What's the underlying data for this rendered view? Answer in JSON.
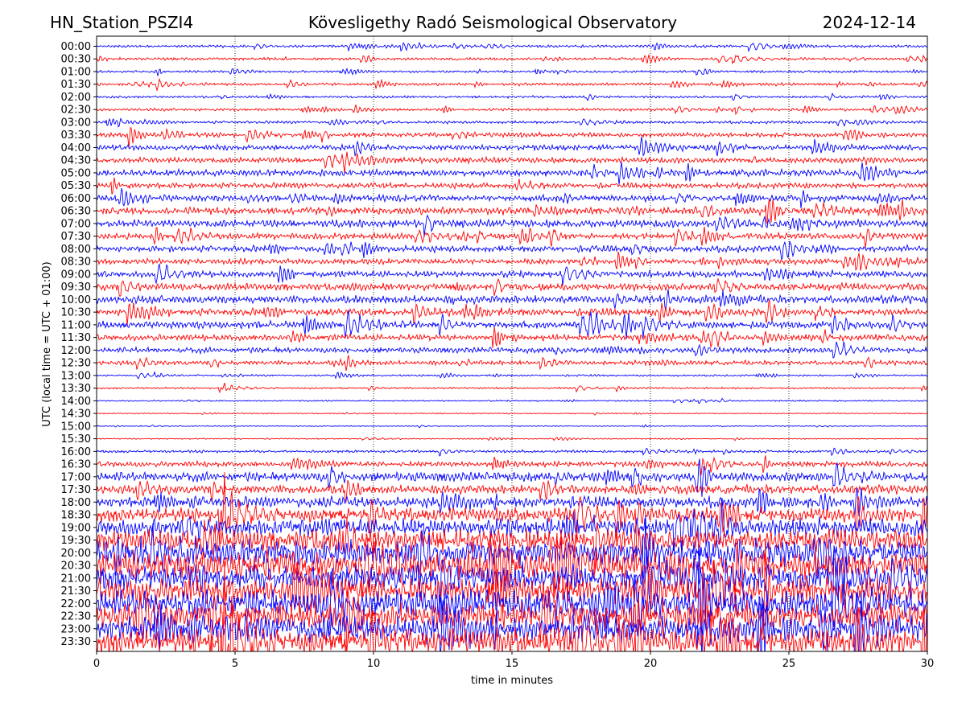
{
  "header": {
    "station": "HN_Station_PSZI4",
    "observatory": "Kövesligethy Radó Seismological Observatory",
    "date": "2024-12-14"
  },
  "chart_data": {
    "type": "line",
    "title": "Kövesligethy Radó Seismological Observatory",
    "xlabel": "time in minutes",
    "ylabel": "UTC (local time = UTC + 01:00)",
    "xlim": [
      0,
      30
    ],
    "xticks": [
      "0",
      "5",
      "10",
      "15",
      "20",
      "25",
      "30"
    ],
    "grid": "vertical dotted at 5-minute intervals",
    "colors": [
      "#0000ff",
      "#ff0000"
    ],
    "rows": [
      {
        "label": "00:00",
        "amp": 1.5
      },
      {
        "label": "00:30",
        "amp": 1.5
      },
      {
        "label": "01:00",
        "amp": 1.3
      },
      {
        "label": "01:30",
        "amp": 1.5
      },
      {
        "label": "02:00",
        "amp": 1.3
      },
      {
        "label": "02:30",
        "amp": 1.5
      },
      {
        "label": "03:00",
        "amp": 1.5
      },
      {
        "label": "03:30",
        "amp": 2.5
      },
      {
        "label": "04:00",
        "amp": 3
      },
      {
        "label": "04:30",
        "amp": 3
      },
      {
        "label": "05:00",
        "amp": 3.5
      },
      {
        "label": "05:30",
        "amp": 3
      },
      {
        "label": "06:00",
        "amp": 3.5
      },
      {
        "label": "06:30",
        "amp": 4
      },
      {
        "label": "07:00",
        "amp": 4
      },
      {
        "label": "07:30",
        "amp": 3.5
      },
      {
        "label": "08:00",
        "amp": 3.5
      },
      {
        "label": "08:30",
        "amp": 3
      },
      {
        "label": "09:00",
        "amp": 3.5
      },
      {
        "label": "09:30",
        "amp": 4
      },
      {
        "label": "10:00",
        "amp": 4.5
      },
      {
        "label": "10:30",
        "amp": 4
      },
      {
        "label": "11:00",
        "amp": 4
      },
      {
        "label": "11:30",
        "amp": 3.5
      },
      {
        "label": "12:00",
        "amp": 3
      },
      {
        "label": "12:30",
        "amp": 2.5
      },
      {
        "label": "13:00",
        "amp": 1
      },
      {
        "label": "13:30",
        "amp": 1
      },
      {
        "label": "14:00",
        "amp": 0.8
      },
      {
        "label": "14:30",
        "amp": 0.6
      },
      {
        "label": "15:00",
        "amp": 0.5
      },
      {
        "label": "15:30",
        "amp": 0.6
      },
      {
        "label": "16:00",
        "amp": 1.5
      },
      {
        "label": "16:30",
        "amp": 3
      },
      {
        "label": "17:00",
        "amp": 5
      },
      {
        "label": "17:30",
        "amp": 5
      },
      {
        "label": "18:00",
        "amp": 6
      },
      {
        "label": "18:30",
        "amp": 8
      },
      {
        "label": "19:00",
        "amp": 10
      },
      {
        "label": "19:30",
        "amp": 12
      },
      {
        "label": "20:00",
        "amp": 14
      },
      {
        "label": "20:30",
        "amp": 15
      },
      {
        "label": "21:00",
        "amp": 15
      },
      {
        "label": "21:30",
        "amp": 15
      },
      {
        "label": "22:00",
        "amp": 15
      },
      {
        "label": "22:30",
        "amp": 15
      },
      {
        "label": "23:00",
        "amp": 15
      },
      {
        "label": "23:30",
        "amp": 15
      }
    ]
  }
}
